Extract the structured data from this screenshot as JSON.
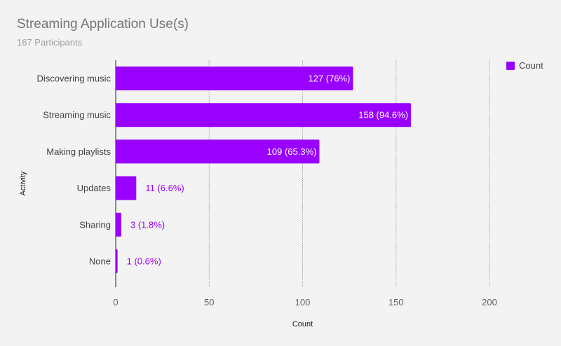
{
  "chart_data": {
    "type": "bar",
    "orientation": "horizontal",
    "title": "Streaming Application Use(s)",
    "subtitle": "167 Participants",
    "xlabel": "Count",
    "ylabel": "Activity",
    "categories": [
      "Discovering music",
      "Streaming music",
      "Making playlists",
      "Updates",
      "Sharing",
      "None"
    ],
    "series": [
      {
        "name": "Count",
        "color": "#9900ff",
        "values": [
          127,
          158,
          109,
          11,
          3,
          1
        ],
        "labels": [
          "127 (76%)",
          "158 (94.6%)",
          "109 (65.3%)",
          "11 (6.6%)",
          "3 (1.8%)",
          "1 (0.6%)"
        ]
      }
    ],
    "xlim": [
      0,
      200
    ],
    "xticks": [
      0,
      50,
      100,
      150,
      200
    ],
    "grid": true,
    "legend": "top-right"
  }
}
